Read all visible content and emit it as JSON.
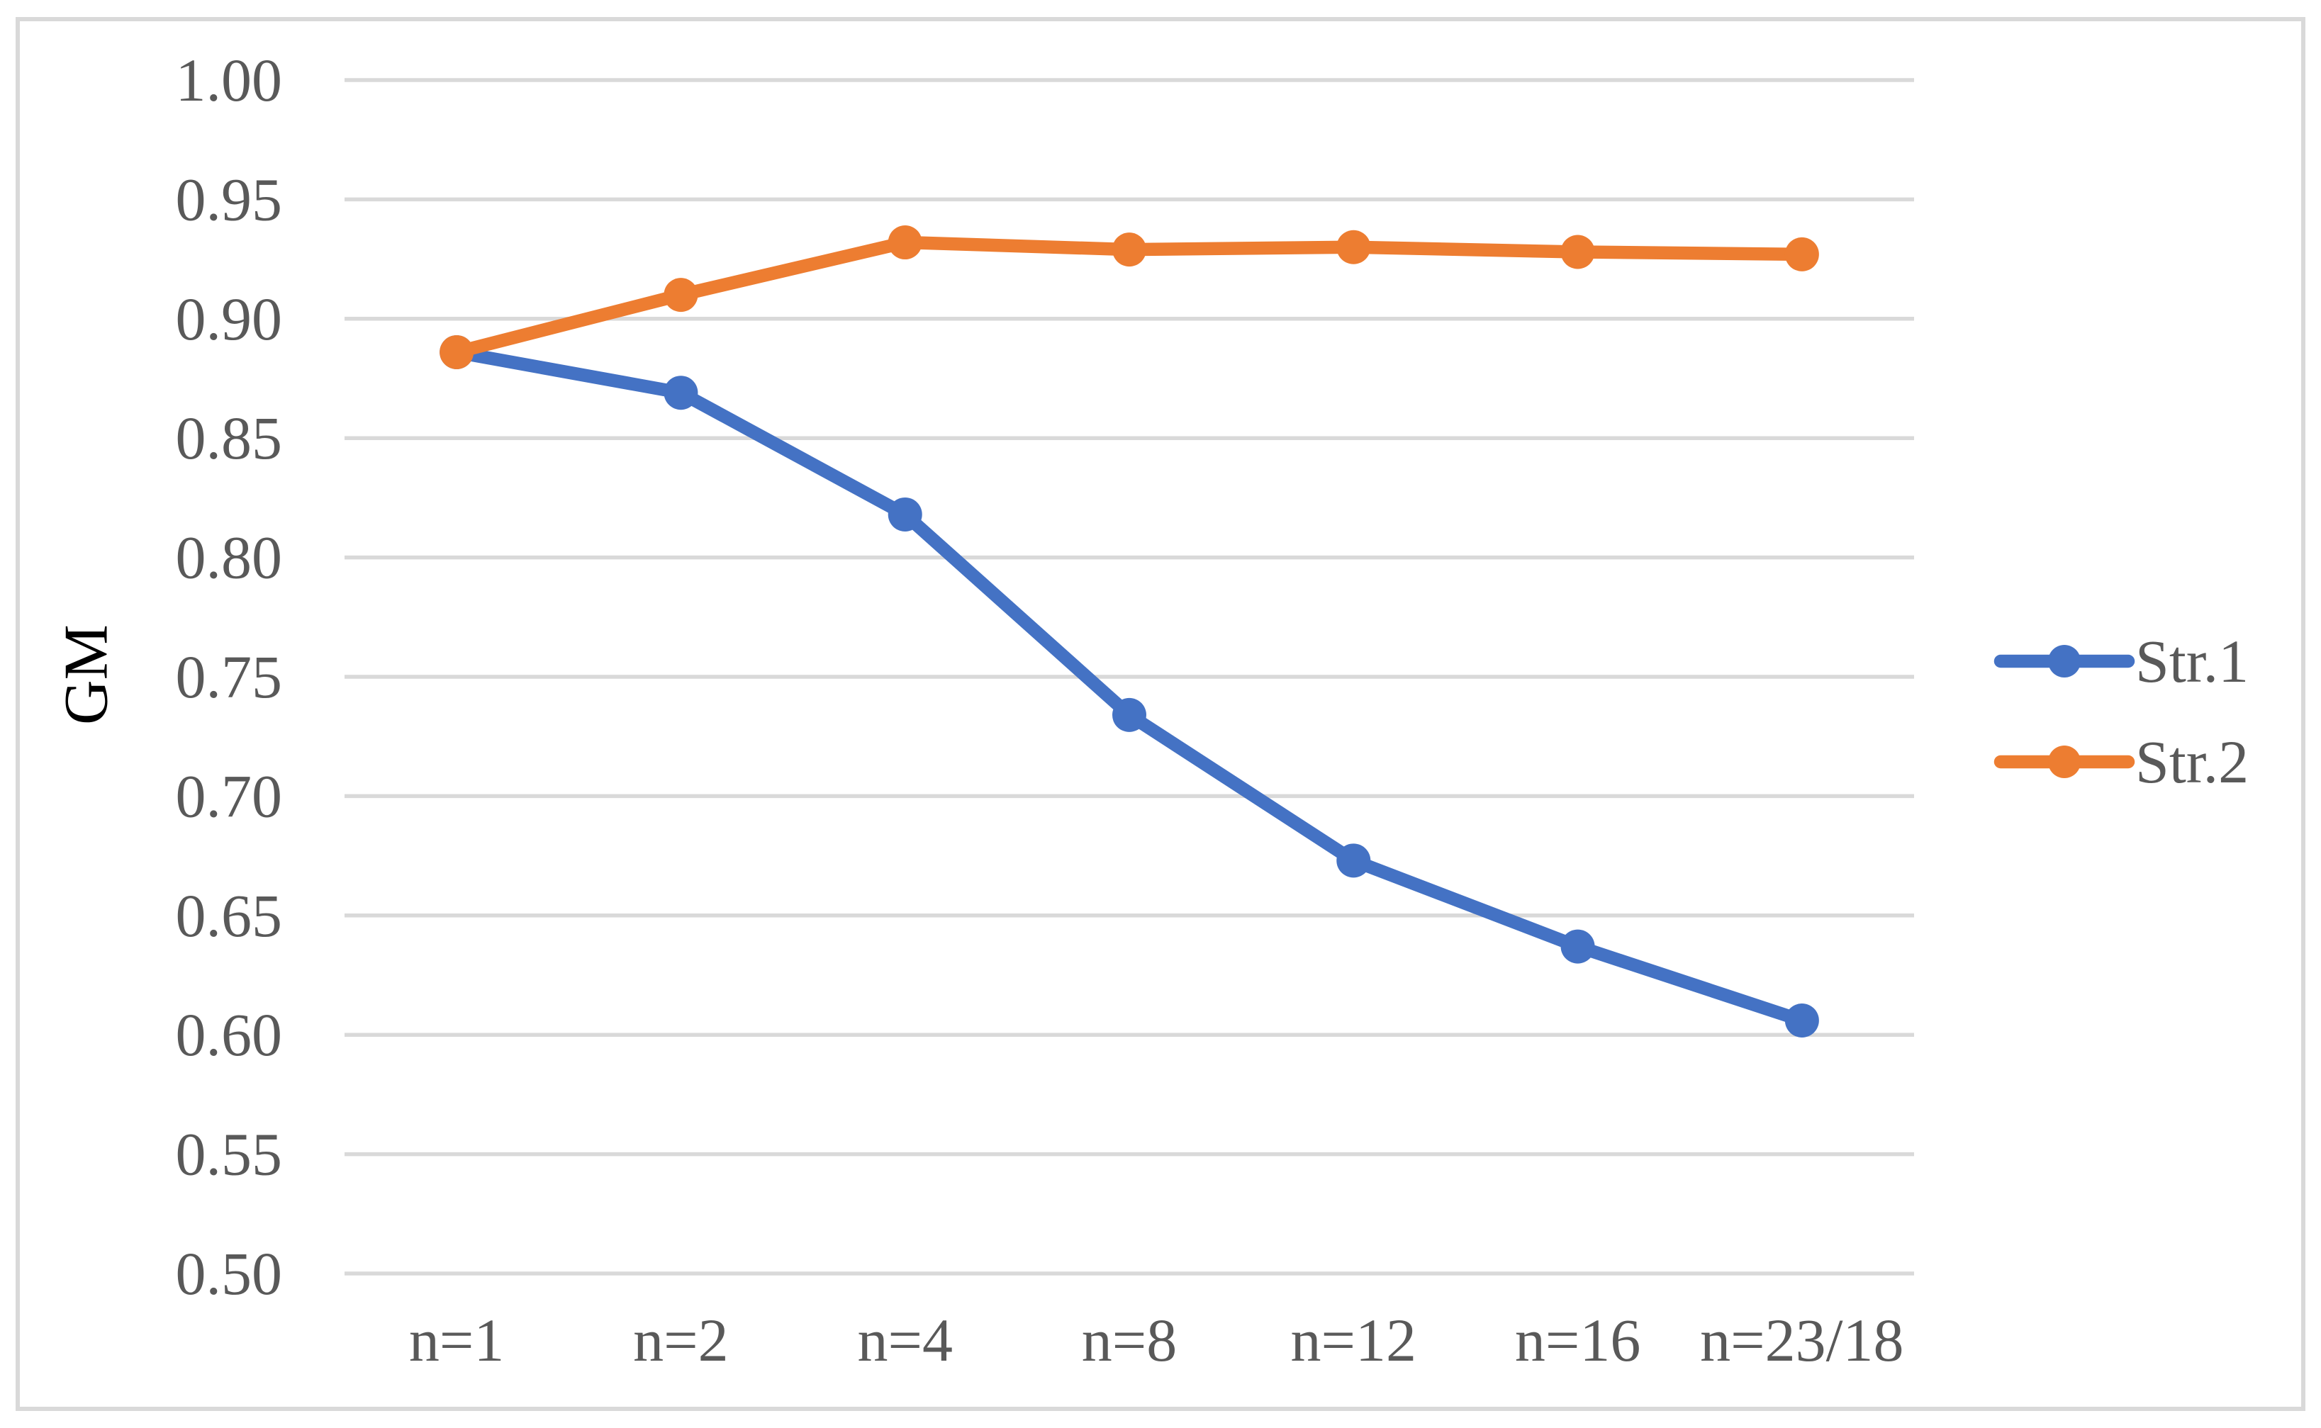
{
  "chart_data": {
    "type": "line",
    "categories": [
      "n=1",
      "n=2",
      "n=4",
      "n=8",
      "n=12",
      "n=16",
      "n=23/18"
    ],
    "series": [
      {
        "name": "Str.1",
        "color": "#4472C4",
        "values": [
          0.886,
          0.869,
          0.818,
          0.734,
          0.673,
          0.637,
          0.606
        ]
      },
      {
        "name": "Str.2",
        "color": "#ED7D31",
        "values": [
          0.886,
          0.91,
          0.932,
          0.929,
          0.93,
          0.928,
          0.927
        ]
      }
    ],
    "title": "",
    "xlabel": "",
    "ylabel": "GM",
    "ylim": [
      0.5,
      1.0
    ],
    "ytick_step": 0.05,
    "ytick_labels": [
      "1.00",
      "0.95",
      "0.90",
      "0.85",
      "0.80",
      "0.75",
      "0.70",
      "0.65",
      "0.60",
      "0.55",
      "0.50"
    ],
    "grid": true,
    "legend_position": "center-right",
    "marker": "circle"
  },
  "style": {
    "background": "#FFFFFF",
    "border_color": "#D9D9D9",
    "gridline_color": "#D9D9D9",
    "text_color": "#595959"
  }
}
